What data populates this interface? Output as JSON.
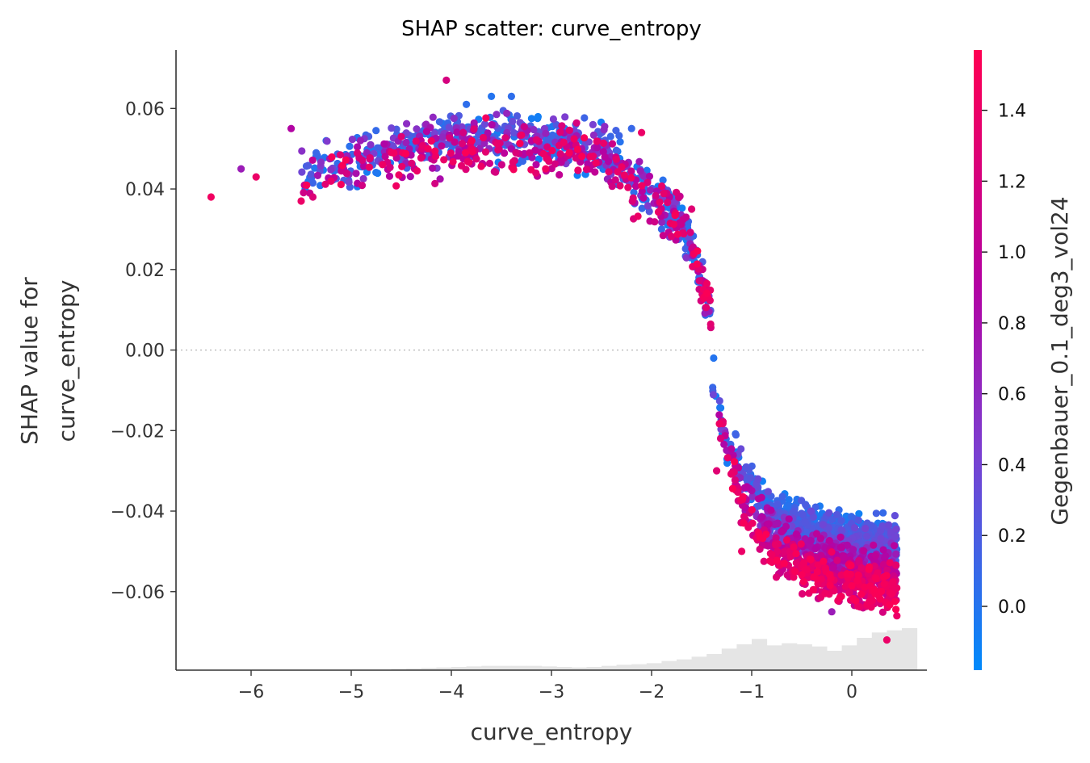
{
  "chart_data": {
    "type": "scatter",
    "title": "SHAP scatter: curve_entropy",
    "xlabel": "curve_entropy",
    "ylabel_lines": [
      "SHAP value for",
      "curve_entropy"
    ],
    "xlim": [
      -6.75,
      0.75
    ],
    "ylim": [
      -0.0795,
      0.0745
    ],
    "x_ticks": [
      -6,
      -5,
      -4,
      -3,
      -2,
      -1,
      0
    ],
    "x_tick_labels": [
      "−6",
      "−5",
      "−4",
      "−3",
      "−2",
      "−1",
      "0"
    ],
    "y_ticks": [
      0.06,
      0.04,
      0.02,
      0.0,
      -0.02,
      -0.04,
      -0.06
    ],
    "y_tick_labels": [
      "0.06",
      "0.04",
      "0.02",
      "0.00",
      "−0.02",
      "−0.04",
      "−0.06"
    ],
    "zero_line": true,
    "grid": false,
    "colorbar": {
      "label": "Gegenbauer_0.1_deg3_vol24",
      "range": [
        -0.18,
        1.57
      ],
      "ticks": [
        0.0,
        0.2,
        0.4,
        0.6,
        0.8,
        1.0,
        1.2,
        1.4
      ],
      "tick_labels": [
        "0.0",
        "0.2",
        "0.4",
        "0.6",
        "0.8",
        "1.0",
        "1.2",
        "1.4"
      ],
      "colors": [
        "#008afb",
        "#7b3fd1",
        "#b302a3",
        "#ff0052"
      ]
    },
    "histogram": {
      "x_start": -4.6,
      "bin_width": 0.15,
      "relative_heights": [
        0.02,
        0.03,
        0.04,
        0.05,
        0.06,
        0.07,
        0.08,
        0.08,
        0.08,
        0.08,
        0.07,
        0.06,
        0.05,
        0.06,
        0.08,
        0.1,
        0.11,
        0.13,
        0.17,
        0.2,
        0.25,
        0.3,
        0.4,
        0.48,
        0.58,
        0.46,
        0.5,
        0.48,
        0.44,
        0.36,
        0.46,
        0.6,
        0.7,
        0.74,
        0.78
      ],
      "color": "#e5e5e5"
    },
    "series": [
      {
        "segment": "left",
        "x_range": [
          -6.4,
          -1.4
        ],
        "y_peak": 0.052,
        "spread": 0.006
      },
      {
        "segment": "right",
        "x_range": [
          -1.4,
          0.45
        ],
        "y_near": -0.01,
        "y_far": -0.048,
        "spread": 0.006
      }
    ],
    "sample_points": [
      [
        -6.4,
        0.038,
        1.45
      ],
      [
        -6.1,
        0.045,
        0.7
      ],
      [
        -5.95,
        0.043,
        1.4
      ],
      [
        -5.6,
        0.055,
        0.9
      ],
      [
        -5.5,
        0.037,
        1.4
      ],
      [
        -5.35,
        0.049,
        0.1
      ],
      [
        -5.25,
        0.052,
        0.1
      ],
      [
        -4.5,
        0.053,
        1.3
      ],
      [
        -4.05,
        0.067,
        1.2
      ],
      [
        -3.85,
        0.061,
        0.05
      ],
      [
        -3.6,
        0.063,
        0.0
      ],
      [
        -3.4,
        0.063,
        0.05
      ],
      [
        -2.2,
        0.055,
        0.1
      ],
      [
        -2.1,
        0.054,
        1.4
      ],
      [
        -1.9,
        0.03,
        0.1
      ],
      [
        -1.6,
        0.035,
        1.3
      ],
      [
        -1.42,
        0.009,
        0.1
      ],
      [
        -1.38,
        -0.002,
        0.0
      ],
      [
        -1.35,
        -0.03,
        1.3
      ],
      [
        -1.1,
        -0.05,
        1.4
      ],
      [
        -0.3,
        -0.06,
        1.3
      ],
      [
        -0.2,
        -0.065,
        0.7
      ],
      [
        0.35,
        -0.072,
        1.4
      ],
      [
        0.45,
        -0.066,
        1.4
      ]
    ]
  }
}
